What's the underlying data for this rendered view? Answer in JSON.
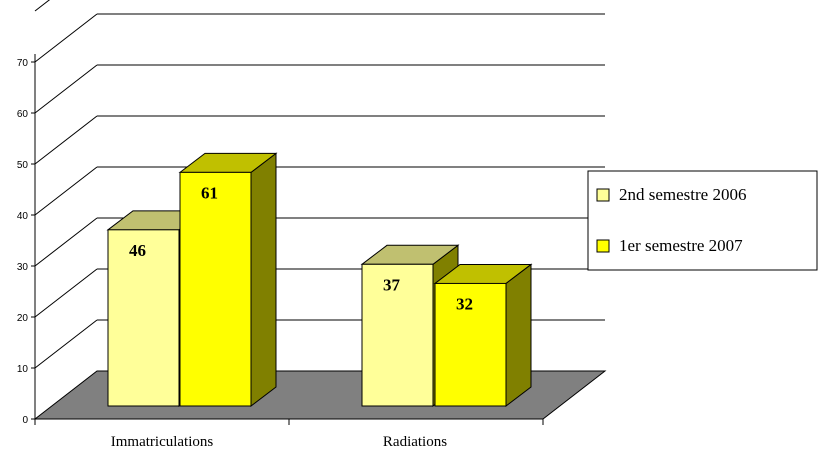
{
  "chart_data": {
    "type": "bar",
    "title": "",
    "xlabel": "",
    "ylabel": "",
    "categories": [
      "Immatriculations",
      "Radiations"
    ],
    "series": [
      {
        "name": "2nd semestre 2006",
        "values": [
          46,
          37
        ]
      },
      {
        "name": "1er semestre 2007",
        "values": [
          61,
          32
        ]
      }
    ],
    "ylim": [
      0,
      70
    ],
    "yticks": [
      0,
      10,
      20,
      30,
      40,
      50,
      60,
      70
    ],
    "grid": true,
    "legend": "right",
    "three_d": true,
    "colors": {
      "series": [
        "#ffff99",
        "#ffff00"
      ],
      "series_side": [
        "#808000",
        "#808000"
      ],
      "series_top": [
        "#c0c070",
        "#c0c000"
      ],
      "floor": "#808080",
      "grid": "#000000"
    }
  }
}
